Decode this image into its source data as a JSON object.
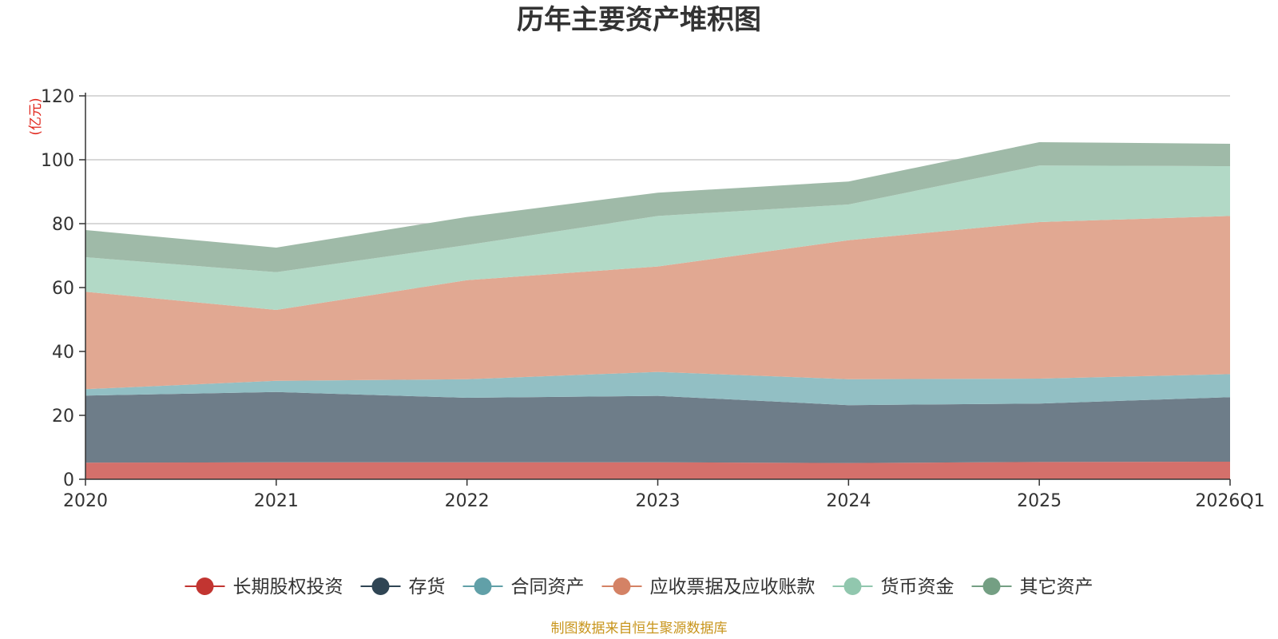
{
  "chart_data": {
    "type": "area",
    "stacked": true,
    "title": "历年主要资产堆积图",
    "ylabel": "(亿元)",
    "xlabel": "",
    "categories": [
      "2020",
      "2021",
      "2022",
      "2023",
      "2024",
      "2025",
      "2026Q1"
    ],
    "ylim": [
      0,
      120
    ],
    "yticks": [
      0,
      20,
      40,
      60,
      80,
      100,
      120
    ],
    "grid": true,
    "legend_position": "bottom",
    "series": [
      {
        "name": "长期股权投资",
        "color": "#c23531",
        "fill": "#d4706b",
        "values": [
          5.2,
          5.3,
          5.3,
          5.3,
          5.1,
          5.4,
          5.5
        ]
      },
      {
        "name": "存货",
        "color": "#2f4554",
        "fill": "#6e7d89",
        "values": [
          21.0,
          22.0,
          20.2,
          20.8,
          18.1,
          18.3,
          20.2
        ]
      },
      {
        "name": "合同资产",
        "color": "#61a0a8",
        "fill": "#92bfc4",
        "values": [
          2.0,
          3.5,
          5.8,
          7.5,
          8.1,
          7.8,
          7.2
        ]
      },
      {
        "name": "应收票据及应收账款",
        "color": "#d48265",
        "fill": "#e1a892",
        "values": [
          30.5,
          22.2,
          31.0,
          33.0,
          43.5,
          49.0,
          49.5
        ]
      },
      {
        "name": "货币资金",
        "color": "#91c7ae",
        "fill": "#b2d9c6",
        "values": [
          10.8,
          11.8,
          11.0,
          15.8,
          11.2,
          17.7,
          15.6
        ]
      },
      {
        "name": "其它资产",
        "color": "#749f83",
        "fill": "#9fbaa8",
        "values": [
          8.5,
          7.7,
          8.8,
          7.3,
          7.2,
          7.3,
          7.0
        ]
      }
    ]
  },
  "source_note": "制图数据来自恒生聚源数据库"
}
